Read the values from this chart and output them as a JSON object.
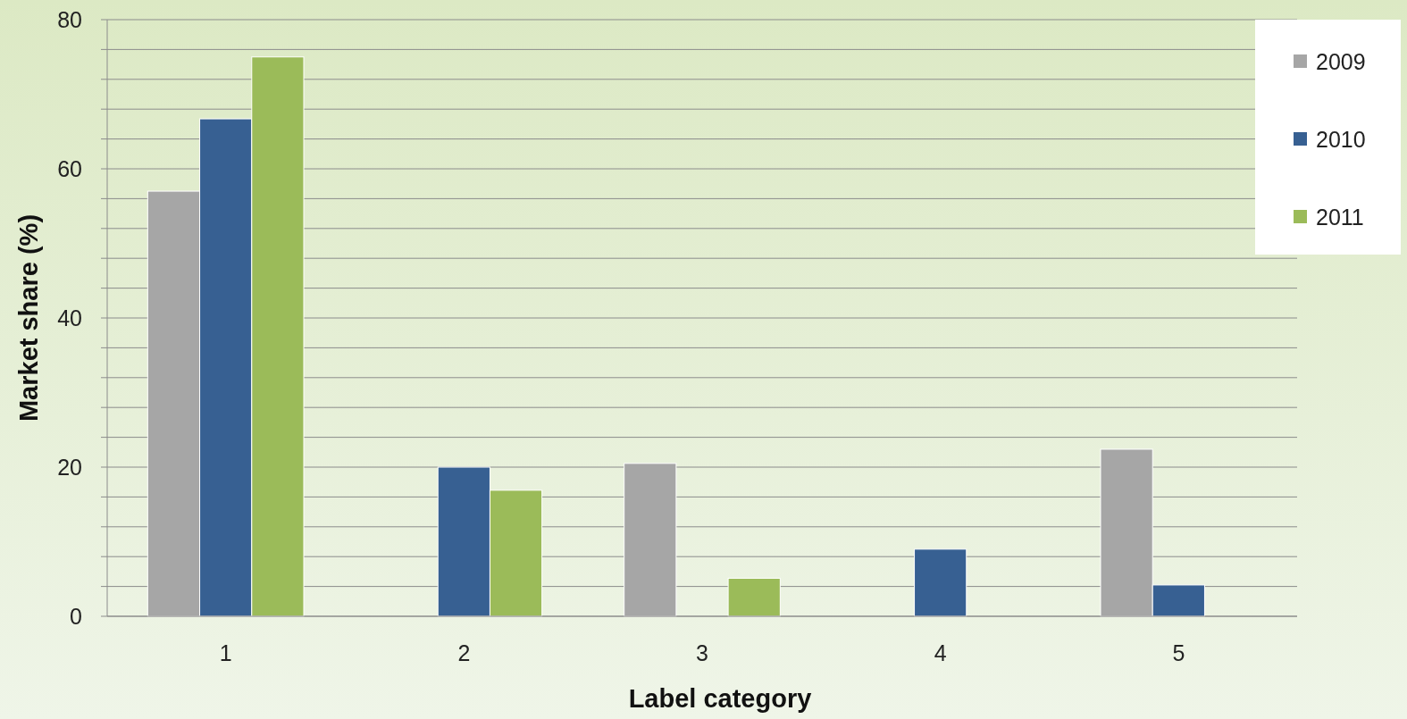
{
  "chart_data": {
    "type": "bar",
    "xlabel": "Label category",
    "ylabel": "Market share (%)",
    "categories": [
      "1",
      "2",
      "3",
      "4",
      "5"
    ],
    "series": [
      {
        "name": "2009",
        "color": "#a6a6a6",
        "values": [
          57,
          0,
          20.5,
          0,
          22.4
        ]
      },
      {
        "name": "2010",
        "color": "#376092",
        "values": [
          66.7,
          20,
          0,
          9,
          4.2
        ]
      },
      {
        "name": "2011",
        "color": "#9bbb59",
        "values": [
          75,
          16.9,
          5.1,
          0,
          0
        ]
      }
    ],
    "ylim": [
      0,
      80
    ],
    "yticks": [
      0,
      {
        "value": 4,
        "label": null
      },
      {
        "value": 8,
        "label": null
      },
      {
        "value": 12,
        "label": null
      },
      {
        "value": 16,
        "label": null
      },
      20,
      {
        "value": 24,
        "label": null
      },
      {
        "value": 28,
        "label": null
      },
      {
        "value": 32,
        "label": null
      },
      {
        "value": 36,
        "label": null
      },
      40,
      {
        "value": 44,
        "label": null
      },
      {
        "value": 48,
        "label": null
      },
      {
        "value": 52,
        "label": null
      },
      {
        "value": 56,
        "label": null
      },
      60,
      {
        "value": 64,
        "label": null
      },
      {
        "value": 68,
        "label": null
      },
      {
        "value": 72,
        "label": null
      },
      {
        "value": 76,
        "label": null
      },
      80
    ],
    "grid": "y",
    "legend": "top right"
  }
}
